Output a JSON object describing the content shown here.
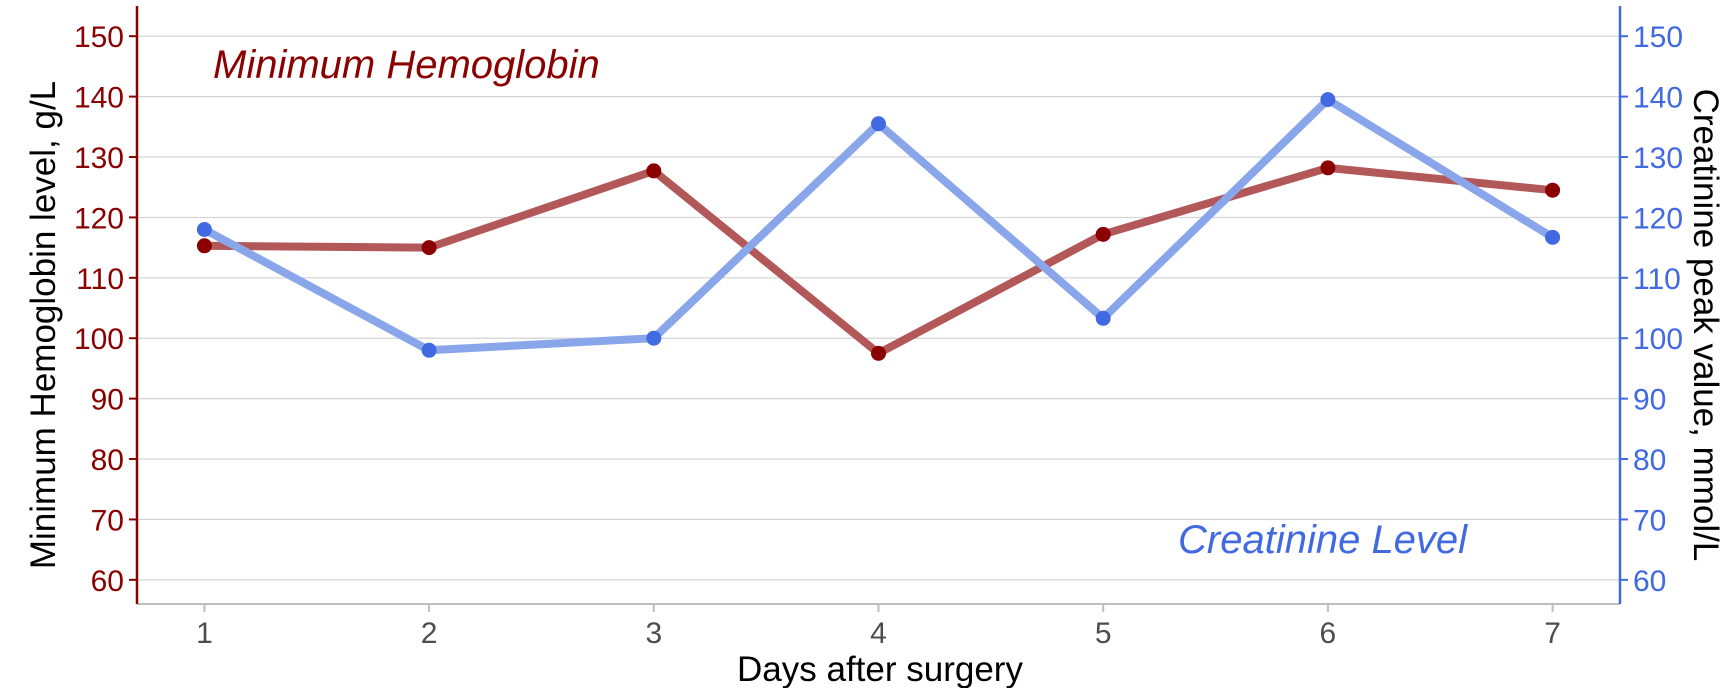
{
  "chart_data": {
    "type": "line",
    "x": [
      1,
      2,
      3,
      4,
      5,
      6,
      7
    ],
    "xlabel": "Days after surgery",
    "xticks": [
      "1",
      "2",
      "3",
      "4",
      "5",
      "6",
      "7"
    ],
    "xlim": [
      0.7,
      7.3
    ],
    "y_left": {
      "label": "Minimum Hemoglobin level, g/L",
      "ticks": [
        "60",
        "70",
        "80",
        "90",
        "100",
        "110",
        "120",
        "130",
        "140",
        "150"
      ],
      "ylim": [
        56,
        155
      ],
      "color": "#8B0000"
    },
    "y_right": {
      "label": "Creatinine peak value, mmol/L",
      "ticks": [
        "60",
        "70",
        "80",
        "90",
        "100",
        "110",
        "120",
        "130",
        "140",
        "150"
      ],
      "ylim": [
        56,
        155
      ],
      "color": "#4169E1"
    },
    "series": [
      {
        "name": "Minimum Hemoglobin",
        "axis": "left",
        "values": [
          115.3,
          115.0,
          127.7,
          97.5,
          117.2,
          128.2,
          124.5
        ],
        "line_color": "#B35858",
        "point_color": "#8B0000"
      },
      {
        "name": "Creatinine Level",
        "axis": "right",
        "values": [
          118.0,
          98.0,
          100.0,
          135.5,
          103.3,
          139.5,
          116.7
        ],
        "line_color": "#8AA6EB",
        "point_color": "#4169E1"
      }
    ],
    "grid": "horizontal",
    "legend": "inline annotations"
  }
}
